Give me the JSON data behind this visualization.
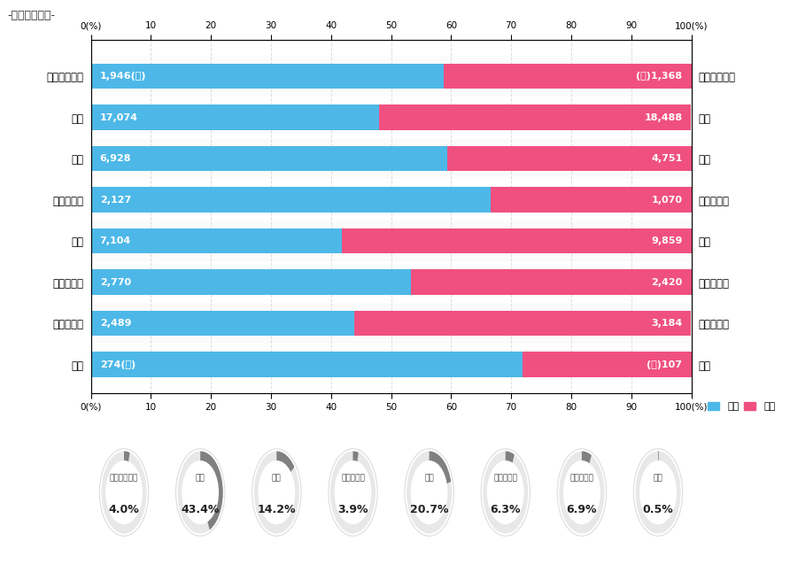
{
  "title": "-地域別会員数-",
  "regions": [
    "北海道・東北",
    "関東",
    "東海",
    "信越・北陸",
    "近畿",
    "中国・四国",
    "九州・沖縄",
    "海外"
  ],
  "male_counts": [
    1946,
    17074,
    6928,
    2127,
    7104,
    2770,
    2489,
    274
  ],
  "female_counts": [
    1368,
    18488,
    4751,
    1070,
    9859,
    2420,
    3184,
    107
  ],
  "male_labels": [
    "1,946(人)",
    "17,074",
    "6,928",
    "2,127",
    "7,104",
    "2,770",
    "2,489",
    "274(人)"
  ],
  "female_labels": [
    "(人)1,368",
    "18,488",
    "4,751",
    "1,070",
    "9,859",
    "2,420",
    "3,184",
    "(人)107"
  ],
  "male_color": "#4DB8E8",
  "female_color": "#F05080",
  "bg_color": "#FFFFFF",
  "title_bg": "#DCE9F5",
  "title_border": "#B0C8E0",
  "percentages": [
    "4.0%",
    "43.4%",
    "14.2%",
    "3.9%",
    "20.7%",
    "6.3%",
    "6.9%",
    "0.5%"
  ],
  "pie_values": [
    4.0,
    43.4,
    14.2,
    3.9,
    20.7,
    6.3,
    6.9,
    0.5
  ],
  "legend_male": "男性",
  "legend_female": "女性",
  "x_ticks": [
    0,
    10,
    20,
    30,
    40,
    50,
    60,
    70,
    80,
    90,
    100
  ],
  "x_tick_labels": [
    "0(%)",
    "10",
    "20",
    "30",
    "40",
    "50",
    "60",
    "70",
    "80",
    "90",
    "100(%)"
  ],
  "donut_bg": "#E8E8E8",
  "donut_fg": "#808080",
  "grid_color": "#DDDDDD",
  "bar_height": 0.62,
  "bar_gap_color": "#F5F5F5"
}
